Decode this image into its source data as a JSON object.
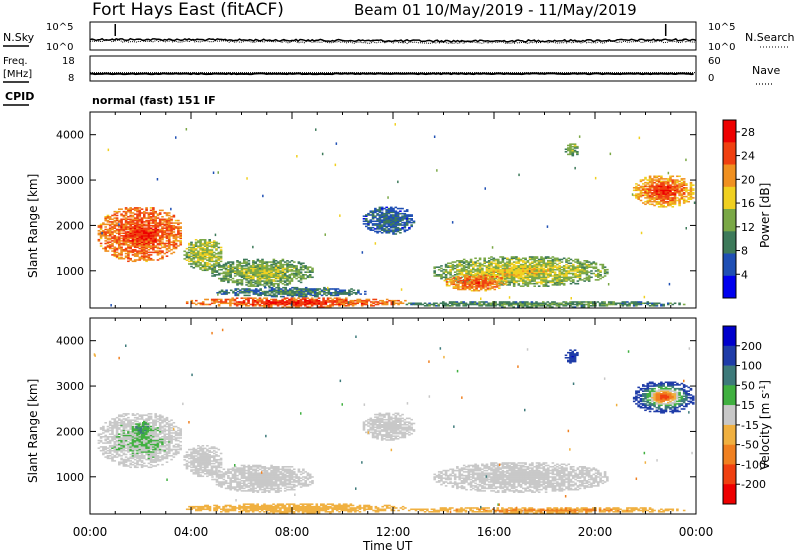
{
  "header": {
    "station": "Fort Hays East (fitACF)",
    "beam": "Beam 01",
    "dates": "10/May/2019 - 11/May/2019"
  },
  "side_labels": {
    "nsky": "N.Sky",
    "freq": "Freq.",
    "freq_unit": "[MHz]",
    "cpid": "CPID",
    "nsearch": "N.Search",
    "nave": "Nave"
  },
  "cpid_text": "normal (fast) 151 IF",
  "x_axis": {
    "label": "Time UT",
    "ticks": [
      "00:00",
      "04:00",
      "08:00",
      "12:00",
      "16:00",
      "20:00",
      "00:00"
    ]
  },
  "colors": {
    "power": [
      "#0000ee",
      "#1f4fb4",
      "#3d7a5a",
      "#7aa846",
      "#f0d020",
      "#f09020",
      "#f04010",
      "#ee0000"
    ],
    "velocity": [
      "#ee0000",
      "#f04010",
      "#f08020",
      "#f0b040",
      "#c8c8c8",
      "#40b040",
      "#3d7a7a",
      "#1f3ca8",
      "#0000cc"
    ]
  },
  "chart_data": [
    {
      "type": "line",
      "name": "noise-panel",
      "left_axis": {
        "label": "N.Sky",
        "ticks": [
          "10^5",
          "10^0"
        ],
        "scale": "log"
      },
      "right_axis": {
        "label": "N.Search",
        "ticks": [
          "10^5",
          "10^0"
        ],
        "scale": "log"
      },
      "x": [
        0,
        2,
        4,
        6,
        8,
        10,
        12,
        14,
        16,
        18,
        20,
        22,
        24
      ],
      "series": [
        {
          "values": [
            80,
            75,
            70,
            60,
            55,
            50,
            45,
            40,
            40,
            45,
            50,
            60,
            70
          ]
        },
        {
          "values": [
            40,
            38,
            35,
            30,
            28,
            25,
            22,
            20,
            20,
            22,
            25,
            30,
            35
          ]
        }
      ]
    },
    {
      "type": "line",
      "name": "freq-panel",
      "left_axis": {
        "label": "Freq. [MHz]",
        "ticks": [
          "18",
          "8"
        ],
        "ylim": [
          8,
          18
        ]
      },
      "right_axis": {
        "label": "Nave",
        "ticks": [
          "60",
          "0"
        ],
        "ylim": [
          0,
          60
        ]
      },
      "x": [
        0,
        24
      ],
      "series": [
        {
          "values": [
            10.9,
            10.9
          ]
        },
        {
          "values": [
            20,
            20
          ]
        }
      ]
    },
    {
      "type": "heatmap",
      "name": "power-panel",
      "xlabel": "Time UT",
      "ylabel": "Slant Range [km]",
      "xlim": [
        0,
        24
      ],
      "ylim": [
        180,
        4500
      ],
      "yticks": [
        1000,
        2000,
        3000,
        4000
      ],
      "colorbar": {
        "label": "Power [dB]",
        "ticks": [
          4,
          8,
          12,
          16,
          20,
          24,
          28
        ],
        "range": [
          0,
          30
        ]
      },
      "regions": [
        {
          "t": [
            0.3,
            3.6
          ],
          "r": [
            1200,
            2400
          ],
          "level": 21,
          "core": 26
        },
        {
          "t": [
            3.7,
            5.2
          ],
          "r": [
            1000,
            1700
          ],
          "level": 13,
          "core": 15
        },
        {
          "t": [
            4.8,
            8.8
          ],
          "r": [
            650,
            1250
          ],
          "level": 11,
          "core": 15
        },
        {
          "t": [
            5.0,
            11.0
          ],
          "r": [
            420,
            620
          ],
          "level": 8,
          "core": 10
        },
        {
          "t": [
            3.8,
            12.5
          ],
          "r": [
            190,
            400
          ],
          "level": 22,
          "core": 27
        },
        {
          "t": [
            13.6,
            20.5
          ],
          "r": [
            650,
            1300
          ],
          "level": 12,
          "core": 18
        },
        {
          "t": [
            14.0,
            16.5
          ],
          "r": [
            550,
            900
          ],
          "level": 20,
          "core": 25
        },
        {
          "t": [
            12.5,
            23.5
          ],
          "r": [
            190,
            320
          ],
          "level": 9,
          "core": 12
        },
        {
          "t": [
            10.8,
            12.8
          ],
          "r": [
            1800,
            2400
          ],
          "level": 6,
          "core": 8
        },
        {
          "t": [
            18.8,
            19.3
          ],
          "r": [
            3500,
            3800
          ],
          "level": 12,
          "core": 14
        },
        {
          "t": [
            21.5,
            23.9
          ],
          "r": [
            2400,
            3100
          ],
          "level": 18,
          "core": 27
        }
      ]
    },
    {
      "type": "heatmap",
      "name": "velocity-panel",
      "xlabel": "Time UT",
      "ylabel": "Slant Range [km]",
      "xlim": [
        0,
        24
      ],
      "ylim": [
        180,
        4500
      ],
      "yticks": [
        1000,
        2000,
        3000,
        4000
      ],
      "colorbar": {
        "label": "Velocity [m s^-1]",
        "ticks": [
          200,
          100,
          50,
          15,
          -15,
          -50,
          -100,
          -200
        ]
      },
      "regions": [
        {
          "t": [
            0.3,
            3.6
          ],
          "r": [
            1200,
            2400
          ],
          "level": 0,
          "core": 20
        },
        {
          "t": [
            1.7,
            2.3
          ],
          "r": [
            1900,
            2200
          ],
          "level": 40,
          "core": 60
        },
        {
          "t": [
            3.7,
            5.2
          ],
          "r": [
            1000,
            1700
          ],
          "level": 0,
          "core": 5
        },
        {
          "t": [
            4.8,
            8.8
          ],
          "r": [
            650,
            1250
          ],
          "level": 0,
          "core": -5
        },
        {
          "t": [
            3.8,
            12.5
          ],
          "r": [
            190,
            400
          ],
          "level": -40,
          "core": -25
        },
        {
          "t": [
            13.6,
            20.5
          ],
          "r": [
            650,
            1300
          ],
          "level": 0,
          "core": -5
        },
        {
          "t": [
            12.5,
            23.5
          ],
          "r": [
            190,
            320
          ],
          "level": -35,
          "core": -60
        },
        {
          "t": [
            10.8,
            12.8
          ],
          "r": [
            1800,
            2400
          ],
          "level": 0,
          "core": 0
        },
        {
          "t": [
            18.8,
            19.3
          ],
          "r": [
            3500,
            3800
          ],
          "level": 150,
          "core": 200
        },
        {
          "t": [
            21.5,
            23.9
          ],
          "r": [
            2400,
            3100
          ],
          "level": 180,
          "core": -150
        }
      ]
    }
  ]
}
